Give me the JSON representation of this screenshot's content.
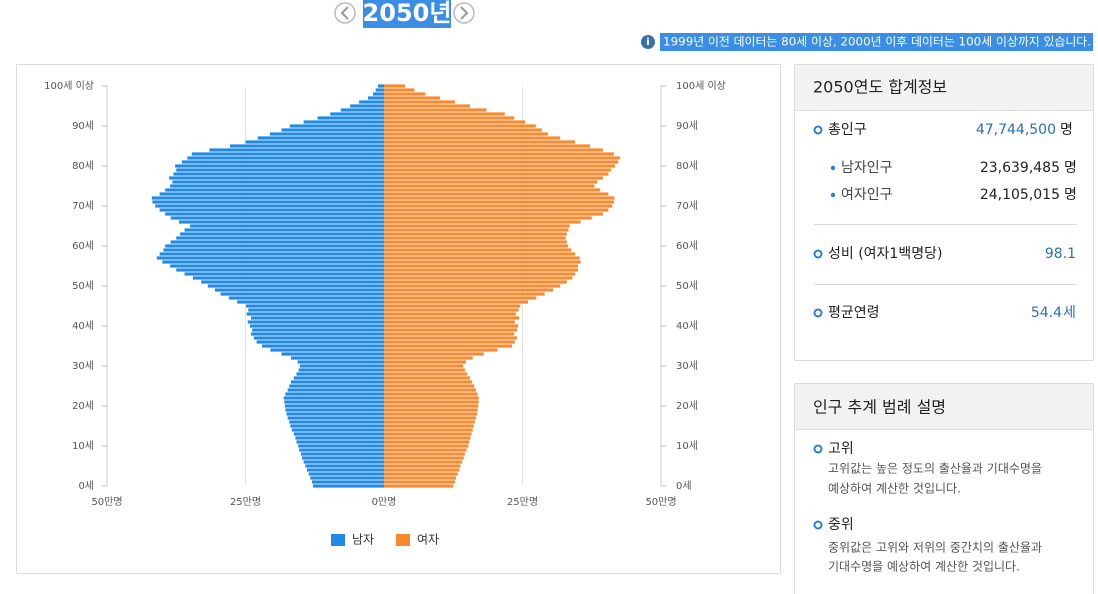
{
  "header": {
    "year": "2050년",
    "note": "1999년 이전 데이터는 80세 이상, 2000년 이후 데이터는 100세 이상까지 있습니다."
  },
  "chart_data": {
    "type": "pyramid",
    "categories": [
      "0세",
      null,
      null,
      null,
      null,
      null,
      null,
      null,
      null,
      null,
      "10세",
      null,
      null,
      null,
      null,
      null,
      null,
      null,
      null,
      null,
      "20세",
      null,
      null,
      null,
      null,
      null,
      null,
      null,
      null,
      null,
      "30세",
      null,
      null,
      null,
      null,
      null,
      null,
      null,
      null,
      null,
      "40세",
      null,
      null,
      null,
      null,
      null,
      null,
      null,
      null,
      null,
      "50세",
      null,
      null,
      null,
      null,
      null,
      null,
      null,
      null,
      null,
      "60세",
      null,
      null,
      null,
      null,
      null,
      null,
      null,
      null,
      null,
      "70세",
      null,
      null,
      null,
      null,
      null,
      null,
      null,
      null,
      null,
      "80세",
      null,
      null,
      null,
      null,
      null,
      null,
      null,
      null,
      null,
      "90세",
      null,
      null,
      null,
      null,
      null,
      null,
      null,
      null,
      null,
      "100세 이상"
    ],
    "series": [
      {
        "name": "남자",
        "color": "#2189e6",
        "side": "left",
        "values": [
          12.8,
          13.0,
          13.3,
          13.6,
          13.9,
          14.2,
          14.5,
          14.8,
          15.0,
          15.3,
          15.5,
          15.8,
          16.0,
          16.3,
          16.6,
          16.9,
          17.1,
          17.4,
          17.6,
          17.8,
          17.9,
          18.0,
          18.1,
          17.8,
          17.4,
          17.1,
          16.8,
          16.3,
          15.8,
          15.4,
          15.2,
          15.6,
          16.8,
          18.5,
          20.5,
          22.0,
          23.0,
          23.5,
          24.0,
          23.8,
          24.2,
          24.6,
          24.0,
          24.8,
          24.5,
          24.9,
          26.5,
          28.0,
          29.5,
          30.5,
          31.8,
          33.0,
          34.5,
          36.0,
          37.5,
          38.6,
          40.0,
          41.0,
          40.5,
          39.8,
          39.5,
          38.5,
          37.5,
          36.8,
          36.0,
          35.0,
          37.0,
          38.5,
          39.5,
          40.5,
          41.3,
          41.8,
          41.9,
          40.5,
          39.5,
          38.6,
          38.2,
          38.8,
          38.0,
          37.5,
          37.7,
          36.5,
          35.5,
          34.7,
          31.5,
          27.8,
          25.0,
          22.8,
          20.6,
          18.5,
          17.0,
          14.5,
          12.0,
          9.7,
          7.8,
          6.1,
          4.5,
          2.9,
          2.0,
          1.5,
          1.1
        ]
      },
      {
        "name": "여자",
        "color": "#f7892e",
        "side": "right",
        "values": [
          12.5,
          12.8,
          13.0,
          13.3,
          13.6,
          13.8,
          14.1,
          14.4,
          14.6,
          14.9,
          15.2,
          15.4,
          15.6,
          15.8,
          16.0,
          16.2,
          16.4,
          16.6,
          16.8,
          16.9,
          17.0,
          17.1,
          17.1,
          16.9,
          16.6,
          16.3,
          15.9,
          15.5,
          15.0,
          14.6,
          14.3,
          14.8,
          16.0,
          18.0,
          20.5,
          23.1,
          23.6,
          24.0,
          23.5,
          24.0,
          24.2,
          23.6,
          24.4,
          23.8,
          24.3,
          24.6,
          26.0,
          27.5,
          29.0,
          30.5,
          31.8,
          33.0,
          34.0,
          34.5,
          35.0,
          35.0,
          35.5,
          35.3,
          34.5,
          33.8,
          33.2,
          33.0,
          32.8,
          33.0,
          33.3,
          33.5,
          35.5,
          37.5,
          39.5,
          40.5,
          41.2,
          41.5,
          41.6,
          40.5,
          39.0,
          38.0,
          38.5,
          39.5,
          40.5,
          41.0,
          41.7,
          42.3,
          42.6,
          41.5,
          39.5,
          37.2,
          34.5,
          31.8,
          29.6,
          28.5,
          27.4,
          25.5,
          23.5,
          21.8,
          18.5,
          15.5,
          12.8,
          10.1,
          7.5,
          5.5,
          3.8
        ]
      }
    ],
    "xlim": [
      0,
      50
    ],
    "xticks": [
      {
        "value": 0,
        "label": "0만명"
      },
      {
        "value": 25,
        "label": "25만명"
      },
      {
        "value": 50,
        "label": "50만명"
      }
    ],
    "grid": true
  },
  "summary": {
    "title": "2050연도 합계정보",
    "total": {
      "label": "총인구",
      "value": "47,744,500",
      "unit": "명"
    },
    "male": {
      "label": "남자인구",
      "value": "23,639,485",
      "unit": "명"
    },
    "female": {
      "label": "여자인구",
      "value": "24,105,015",
      "unit": "명"
    },
    "ratio": {
      "label": "성비 (여자1백명당)",
      "value": "98.1"
    },
    "age": {
      "label": "평균연령",
      "value": "54.4",
      "unit": "세"
    }
  },
  "legend_panel": {
    "title": "인구 추계 범례 설명",
    "items": [
      {
        "label": "고위",
        "lines": [
          "고위값는 높은 정도의 출산율과 기대수명을",
          "예상하여 계산한 것입니다."
        ]
      },
      {
        "label": "중위",
        "lines": [
          "중위값은 고위와 저위의 중간치의 출산율과",
          "기대수명을 예상하여 계산한 것입니다."
        ]
      }
    ]
  }
}
